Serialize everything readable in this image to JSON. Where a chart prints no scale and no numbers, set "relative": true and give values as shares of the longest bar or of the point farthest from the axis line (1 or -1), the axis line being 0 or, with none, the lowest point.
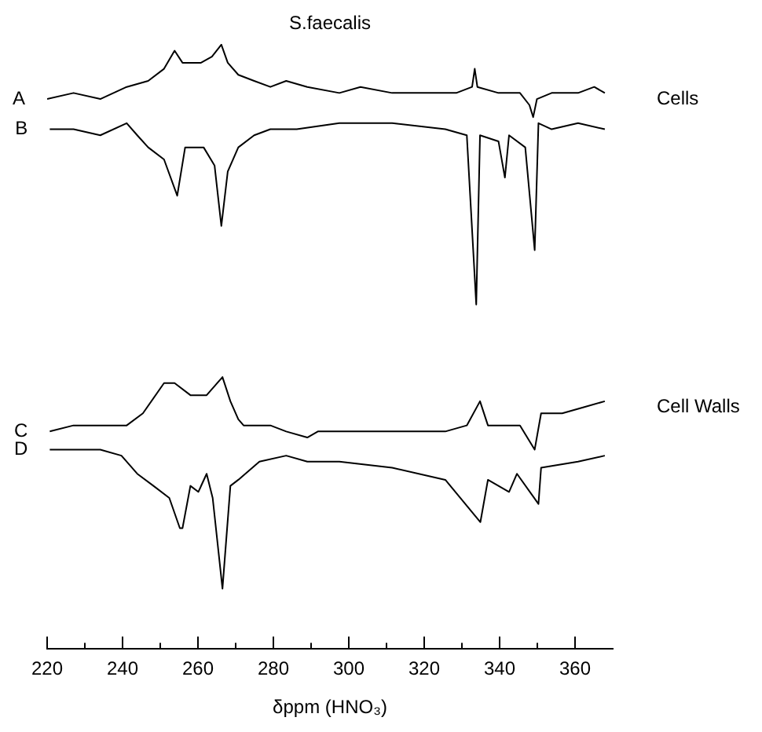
{
  "chart_data": {
    "type": "line",
    "title": "S.faecalis",
    "xlabel": "δppm (HNO₃)",
    "relative": true,
    "legend": false,
    "grid": false,
    "marker": "none",
    "line_style": "solid",
    "xlim": [
      220,
      370
    ],
    "xticks": [
      220,
      {
        "value": 230,
        "label": null
      },
      240,
      {
        "value": 250,
        "label": null
      },
      260,
      {
        "value": 270,
        "label": null
      },
      280,
      {
        "value": 290,
        "label": null
      },
      300,
      {
        "value": 310,
        "label": null
      },
      320,
      {
        "value": 330,
        "label": null
      },
      340,
      {
        "value": 350,
        "label": null
      },
      360
    ],
    "annotations": [
      "Cells",
      "Cell Walls"
    ],
    "series": [
      {
        "name": "A",
        "color": "#000000",
        "x": [
          220.0,
          227.0,
          234.1,
          241.1,
          246.8,
          251.0,
          253.8,
          255.9,
          258.0,
          260.8,
          263.7,
          266.2,
          267.9,
          270.7,
          274.9,
          279.2,
          283.4,
          289.0,
          297.5,
          303.1,
          311.5,
          320.0,
          328.5,
          332.7,
          333.4,
          334.1,
          339.7,
          345.4,
          347.9,
          348.9,
          349.9,
          353.8,
          360.8,
          365.1,
          367.9
        ],
        "values": [
          0.91,
          0.92,
          0.91,
          0.93,
          0.94,
          0.96,
          0.99,
          0.97,
          0.97,
          0.97,
          0.98,
          1.0,
          0.97,
          0.95,
          0.94,
          0.93,
          0.94,
          0.93,
          0.92,
          0.93,
          0.92,
          0.92,
          0.92,
          0.93,
          0.96,
          0.93,
          0.92,
          0.92,
          0.9,
          0.88,
          0.91,
          0.92,
          0.92,
          0.93,
          0.92
        ]
      },
      {
        "name": "B",
        "color": "#000000",
        "x": [
          220.7,
          227.0,
          234.1,
          241.1,
          243.9,
          246.8,
          251.0,
          254.5,
          256.6,
          259.4,
          261.5,
          264.4,
          266.2,
          267.9,
          270.7,
          274.9,
          279.2,
          286.2,
          297.5,
          311.5,
          325.6,
          331.3,
          333.8,
          334.8,
          339.7,
          341.4,
          342.5,
          346.8,
          349.3,
          350.3,
          353.8,
          360.8,
          367.9
        ],
        "values": [
          0.86,
          0.86,
          0.85,
          0.87,
          0.85,
          0.83,
          0.81,
          0.75,
          0.83,
          0.83,
          0.83,
          0.8,
          0.7,
          0.79,
          0.83,
          0.85,
          0.86,
          0.86,
          0.87,
          0.87,
          0.86,
          0.85,
          0.57,
          0.85,
          0.84,
          0.78,
          0.85,
          0.83,
          0.66,
          0.87,
          0.86,
          0.87,
          0.86
        ]
      },
      {
        "name": "C",
        "color": "#000000",
        "x": [
          220.7,
          227.0,
          234.1,
          241.1,
          245.4,
          251.0,
          253.8,
          258.0,
          262.3,
          266.5,
          268.6,
          270.7,
          272.1,
          279.2,
          283.4,
          289.0,
          291.8,
          300.3,
          311.5,
          320.0,
          325.6,
          331.3,
          334.8,
          336.9,
          345.4,
          349.3,
          351.0,
          356.6,
          362.3,
          367.9
        ],
        "values": [
          0.36,
          0.37,
          0.37,
          0.37,
          0.39,
          0.44,
          0.44,
          0.42,
          0.42,
          0.45,
          0.41,
          0.38,
          0.37,
          0.37,
          0.36,
          0.35,
          0.36,
          0.36,
          0.36,
          0.36,
          0.36,
          0.37,
          0.41,
          0.37,
          0.37,
          0.33,
          0.39,
          0.39,
          0.4,
          0.41
        ]
      },
      {
        "name": "D",
        "color": "#000000",
        "x": [
          220.7,
          227.0,
          234.1,
          239.7,
          243.9,
          248.2,
          252.4,
          255.2,
          255.9,
          258.0,
          260.1,
          262.3,
          263.9,
          266.5,
          268.6,
          270.7,
          276.3,
          283.4,
          289.0,
          297.5,
          311.5,
          325.6,
          334.9,
          336.9,
          342.5,
          344.6,
          350.3,
          351.0,
          360.8,
          367.9
        ],
        "values": [
          0.33,
          0.33,
          0.33,
          0.32,
          0.29,
          0.27,
          0.25,
          0.2,
          0.2,
          0.27,
          0.26,
          0.29,
          0.25,
          0.1,
          0.27,
          0.28,
          0.31,
          0.32,
          0.31,
          0.31,
          0.3,
          0.28,
          0.21,
          0.28,
          0.26,
          0.29,
          0.24,
          0.3,
          0.31,
          0.32
        ]
      }
    ]
  }
}
